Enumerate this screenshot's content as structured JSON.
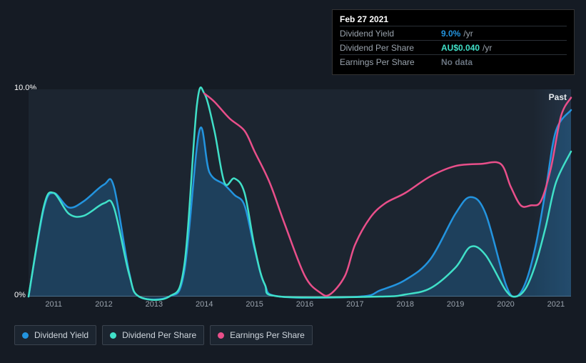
{
  "chart": {
    "type": "line",
    "background_color": "#151b24",
    "plot_background_gradient": [
      "#1c2530",
      "#243447"
    ],
    "text_color": "#ffffff",
    "muted_text_color": "#9aa3ad",
    "axis_color": "#5a6570",
    "past_label": "Past",
    "ylim": [
      0,
      10
    ],
    "xlim": [
      2010.5,
      2021.3
    ],
    "yticks": [
      {
        "value": 0,
        "label": "0%"
      },
      {
        "value": 10,
        "label": "10.0%"
      }
    ],
    "xticks": [
      2011,
      2012,
      2013,
      2014,
      2015,
      2016,
      2017,
      2018,
      2019,
      2020,
      2021
    ],
    "series": [
      {
        "id": "dividend_yield",
        "label": "Dividend Yield",
        "color": "#2394df",
        "area_fill": "#2394df",
        "area_opacity": 0.25,
        "line_width": 2.5,
        "points": [
          [
            2010.5,
            0
          ],
          [
            2010.8,
            4.2
          ],
          [
            2011,
            5.0
          ],
          [
            2011.3,
            4.3
          ],
          [
            2011.6,
            4.6
          ],
          [
            2012,
            5.4
          ],
          [
            2012.2,
            5.3
          ],
          [
            2012.5,
            1.2
          ],
          [
            2012.7,
            0
          ],
          [
            2013.3,
            0
          ],
          [
            2013.6,
            1.2
          ],
          [
            2013.9,
            8.0
          ],
          [
            2014.1,
            6.0
          ],
          [
            2014.4,
            5.4
          ],
          [
            2014.6,
            4.9
          ],
          [
            2014.8,
            4.4
          ],
          [
            2015,
            2.3
          ],
          [
            2015.2,
            0.6
          ],
          [
            2015.5,
            0
          ],
          [
            2017.1,
            0
          ],
          [
            2017.5,
            0.3
          ],
          [
            2018,
            0.8
          ],
          [
            2018.5,
            1.8
          ],
          [
            2019,
            4.0
          ],
          [
            2019.3,
            4.8
          ],
          [
            2019.6,
            4.0
          ],
          [
            2020,
            0.6
          ],
          [
            2020.2,
            0
          ],
          [
            2020.4,
            0.7
          ],
          [
            2020.6,
            2.5
          ],
          [
            2020.8,
            5.2
          ],
          [
            2021,
            8.0
          ],
          [
            2021.3,
            9.0
          ]
        ]
      },
      {
        "id": "dividend_per_share",
        "label": "Dividend Per Share",
        "color": "#40e0c8",
        "line_width": 2.5,
        "points": [
          [
            2010.5,
            0
          ],
          [
            2010.8,
            4.3
          ],
          [
            2011,
            5.0
          ],
          [
            2011.3,
            4.0
          ],
          [
            2011.6,
            3.9
          ],
          [
            2012,
            4.5
          ],
          [
            2012.2,
            4.3
          ],
          [
            2012.5,
            1.1
          ],
          [
            2012.7,
            0
          ],
          [
            2013.3,
            0
          ],
          [
            2013.6,
            1.5
          ],
          [
            2013.85,
            9.2
          ],
          [
            2014,
            9.8
          ],
          [
            2014.2,
            8.0
          ],
          [
            2014.4,
            5.5
          ],
          [
            2014.6,
            5.7
          ],
          [
            2014.8,
            5.0
          ],
          [
            2015,
            2.4
          ],
          [
            2015.2,
            0.6
          ],
          [
            2015.5,
            0
          ],
          [
            2017.5,
            0
          ],
          [
            2018,
            0.1
          ],
          [
            2018.5,
            0.4
          ],
          [
            2019,
            1.4
          ],
          [
            2019.3,
            2.4
          ],
          [
            2019.6,
            2.0
          ],
          [
            2020,
            0.3
          ],
          [
            2020.2,
            0
          ],
          [
            2020.4,
            0.4
          ],
          [
            2020.6,
            1.6
          ],
          [
            2020.8,
            3.4
          ],
          [
            2021,
            5.5
          ],
          [
            2021.3,
            7.0
          ]
        ]
      },
      {
        "id": "earnings_per_share",
        "label": "Earnings Per Share",
        "color": "#e94f8a",
        "line_width": 2.5,
        "points": [
          [
            2014,
            9.8
          ],
          [
            2014.2,
            9.4
          ],
          [
            2014.5,
            8.6
          ],
          [
            2014.8,
            8.0
          ],
          [
            2015,
            7.0
          ],
          [
            2015.3,
            5.5
          ],
          [
            2015.6,
            3.5
          ],
          [
            2016,
            1.0
          ],
          [
            2016.3,
            0.2
          ],
          [
            2016.5,
            0.1
          ],
          [
            2016.8,
            1.0
          ],
          [
            2017,
            2.5
          ],
          [
            2017.3,
            3.8
          ],
          [
            2017.6,
            4.5
          ],
          [
            2018,
            5.0
          ],
          [
            2018.5,
            5.8
          ],
          [
            2019,
            6.3
          ],
          [
            2019.5,
            6.4
          ],
          [
            2019.9,
            6.4
          ],
          [
            2020.1,
            5.3
          ],
          [
            2020.3,
            4.4
          ],
          [
            2020.5,
            4.4
          ],
          [
            2020.7,
            4.6
          ],
          [
            2020.9,
            6.2
          ],
          [
            2021.1,
            8.7
          ],
          [
            2021.3,
            9.6
          ]
        ]
      }
    ],
    "tooltip": {
      "title": "Feb 27 2021",
      "rows": [
        {
          "key": "Dividend Yield",
          "value": "9.0%",
          "suffix": "/yr",
          "color": "#2394df"
        },
        {
          "key": "Dividend Per Share",
          "value": "AU$0.040",
          "suffix": "/yr",
          "color": "#40e0c8"
        },
        {
          "key": "Earnings Per Share",
          "value": "No data",
          "suffix": "",
          "color": "#6a7480"
        }
      ]
    },
    "legend": [
      {
        "label": "Dividend Yield",
        "color": "#2394df"
      },
      {
        "label": "Dividend Per Share",
        "color": "#40e0c8"
      },
      {
        "label": "Earnings Per Share",
        "color": "#e94f8a"
      }
    ]
  }
}
